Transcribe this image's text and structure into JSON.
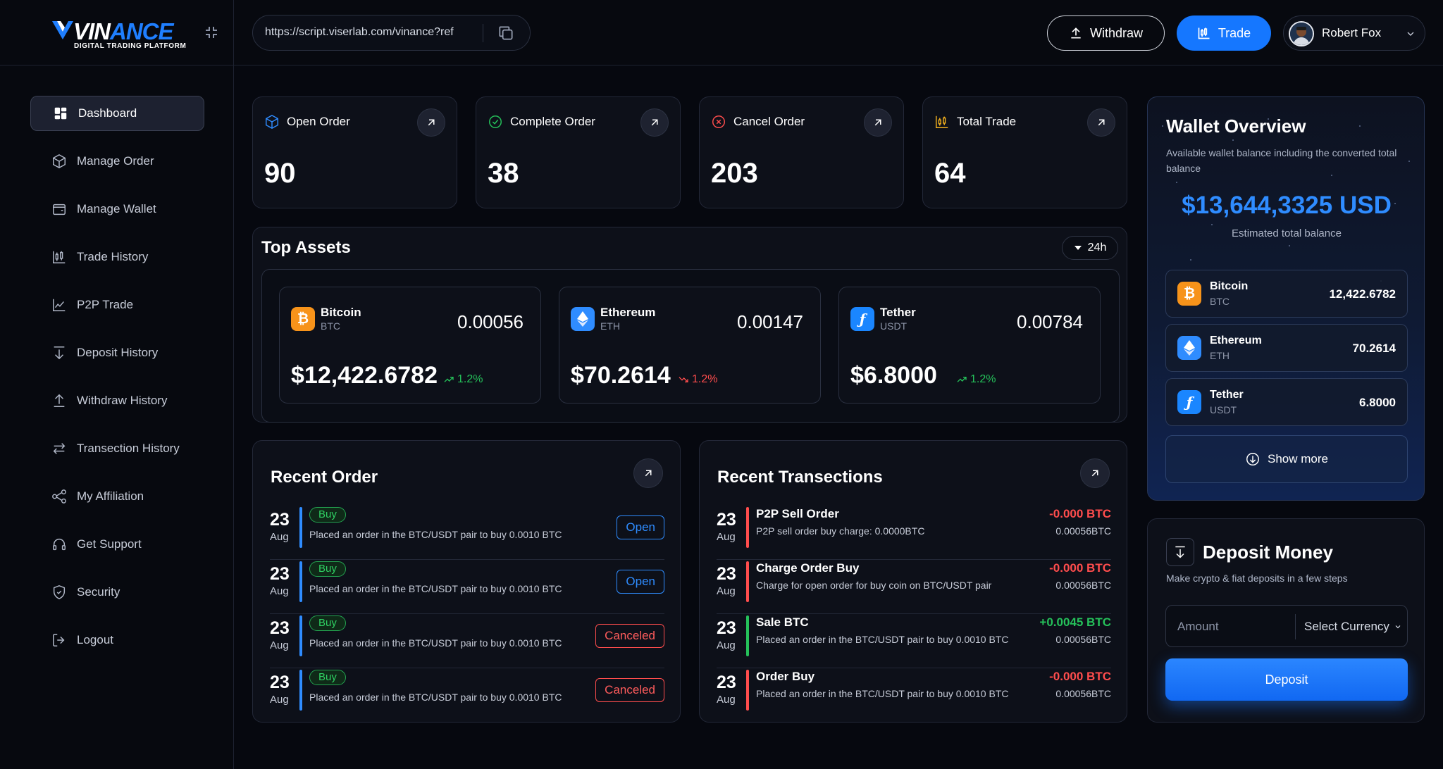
{
  "brand": {
    "name_part1": "VIN",
    "name_part2": "ANCE",
    "tagline": "DIGITAL TRADING PLATFORM"
  },
  "header": {
    "url": "https://script.viserlab.com/vinance?ref",
    "withdraw_label": "Withdraw",
    "trade_label": "Trade",
    "user_name": "Robert Fox"
  },
  "sidebar": {
    "items": [
      {
        "label": "Dashboard",
        "icon": "dashboard-icon",
        "active": true
      },
      {
        "label": "Manage Order",
        "icon": "box-icon"
      },
      {
        "label": "Manage Wallet",
        "icon": "wallet-icon"
      },
      {
        "label": "Trade History",
        "icon": "candlestick-icon"
      },
      {
        "label": "P2P Trade",
        "icon": "chart-icon"
      },
      {
        "label": "Deposit History",
        "icon": "arrow-down-icon"
      },
      {
        "label": "Withdraw History",
        "icon": "arrow-up-icon"
      },
      {
        "label": "Transection History",
        "icon": "swap-icon"
      },
      {
        "label": "My Affiliation",
        "icon": "share-icon"
      },
      {
        "label": "Get Support",
        "icon": "headset-icon"
      },
      {
        "label": "Security",
        "icon": "shield-icon"
      },
      {
        "label": "Logout",
        "icon": "logout-icon"
      }
    ]
  },
  "stats": [
    {
      "label": "Open Order",
      "value": "90",
      "icon": "cube-icon",
      "color": "#2f8cff"
    },
    {
      "label": "Complete Order",
      "value": "38",
      "icon": "check-circle-icon",
      "color": "#25c15a"
    },
    {
      "label": "Cancel Order",
      "value": "203",
      "icon": "x-circle-icon",
      "color": "#ff4d4d"
    },
    {
      "label": "Total Trade",
      "value": "64",
      "icon": "trade-icon",
      "color": "#f2b01e"
    }
  ],
  "top_assets": {
    "title": "Top Assets",
    "period": "24h",
    "items": [
      {
        "name": "Bitcoin",
        "symbol": "BTC",
        "amount": "0.00056",
        "price": "$12,422.6782",
        "change": "1.2%",
        "direction": "up",
        "coin": "btc"
      },
      {
        "name": "Ethereum",
        "symbol": "ETH",
        "amount": "0.00147",
        "price": "$70.2614",
        "change": "1.2%",
        "direction": "down",
        "coin": "eth"
      },
      {
        "name": "Tether",
        "symbol": "USDT",
        "amount": "0.00784",
        "price": "$6.8000",
        "change": "1.2%",
        "direction": "up",
        "coin": "usdt"
      }
    ]
  },
  "recent_orders": {
    "title": "Recent Order",
    "rows": [
      {
        "day": "23",
        "month": "Aug",
        "badge": "Buy",
        "desc": "Placed an order in the BTC/USDT pair to buy 0.0010 BTC",
        "status": "Open"
      },
      {
        "day": "23",
        "month": "Aug",
        "badge": "Buy",
        "desc": "Placed an order in the BTC/USDT pair to buy 0.0010 BTC",
        "status": "Open"
      },
      {
        "day": "23",
        "month": "Aug",
        "badge": "Buy",
        "desc": "Placed an order in the BTC/USDT pair to buy 0.0010 BTC",
        "status": "Canceled"
      },
      {
        "day": "23",
        "month": "Aug",
        "badge": "Buy",
        "desc": "Placed an order in the BTC/USDT pair to buy 0.0010 BTC",
        "status": "Canceled"
      }
    ]
  },
  "recent_transactions": {
    "title": "Recent Transections",
    "rows": [
      {
        "day": "23",
        "month": "Aug",
        "title": "P2P Sell Order",
        "desc": "P2P sell order buy charge: 0.0000BTC",
        "amount": "-0.000 BTC",
        "sub": "0.00056BTC",
        "direction": "down"
      },
      {
        "day": "23",
        "month": "Aug",
        "title": "Charge Order Buy",
        "desc": "Charge for open order for buy coin on BTC/USDT pair",
        "amount": "-0.000 BTC",
        "sub": "0.00056BTC",
        "direction": "down"
      },
      {
        "day": "23",
        "month": "Aug",
        "title": "Sale BTC",
        "desc": "Placed an order in the BTC/USDT pair to buy 0.0010 BTC",
        "amount": "+0.0045 BTC",
        "sub": "0.00056BTC",
        "direction": "up"
      },
      {
        "day": "23",
        "month": "Aug",
        "title": "Order Buy",
        "desc": "Placed an order in the BTC/USDT pair to buy 0.0010 BTC",
        "amount": "-0.000 BTC",
        "sub": "0.00056BTC",
        "direction": "down"
      }
    ]
  },
  "wallet": {
    "title": "Wallet Overview",
    "desc": "Available wallet balance including the converted total balance",
    "balance": "$13,644,3325 USD",
    "balance_label": "Estimated total balance",
    "items": [
      {
        "name": "Bitcoin",
        "symbol": "BTC",
        "value": "12,422.6782",
        "coin": "btc"
      },
      {
        "name": "Ethereum",
        "symbol": "ETH",
        "value": "70.2614",
        "coin": "eth"
      },
      {
        "name": "Tether",
        "symbol": "USDT",
        "value": "6.8000",
        "coin": "usdt"
      }
    ],
    "show_more": "Show more"
  },
  "deposit": {
    "title": "Deposit Money",
    "desc": "Make crypto & fiat deposits in a few steps",
    "amount_placeholder": "Amount",
    "currency_label": "Select Currency",
    "button": "Deposit"
  },
  "colors": {
    "accent": "#1577ff",
    "up": "#25c15a",
    "down": "#ff4d4d",
    "background": "#06080f",
    "card": "#0d1019"
  }
}
